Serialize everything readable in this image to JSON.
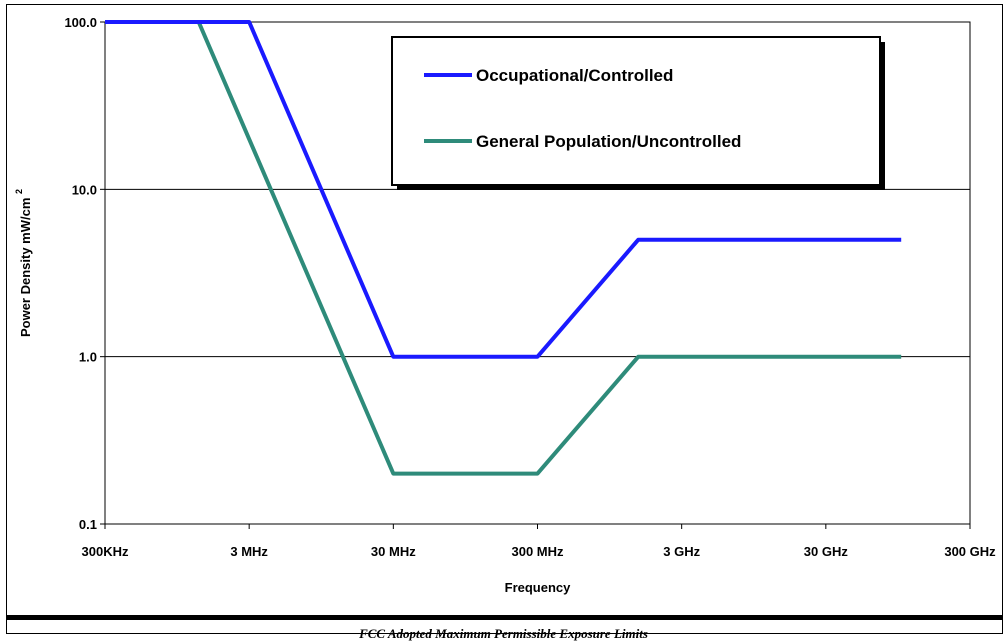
{
  "caption": "FCC Adopted Maximum Permissible Exposure Limits",
  "chart_data": {
    "type": "line",
    "title": "",
    "xlabel": "Frequency",
    "ylabel": "Power Density mW/cm",
    "ylabel_superscript": "2",
    "y_scale": "log",
    "x_scale": "log",
    "x_unit": "MHz",
    "ylim": [
      0.1,
      100
    ],
    "y_ticks": [
      {
        "value": 100,
        "label": "100.0"
      },
      {
        "value": 10,
        "label": "10.0"
      },
      {
        "value": 1,
        "label": "1.0"
      },
      {
        "value": 0.1,
        "label": "0.1"
      }
    ],
    "x_ticks": [
      {
        "value": 0.3,
        "label": "300KHz"
      },
      {
        "value": 3,
        "label": "3 MHz"
      },
      {
        "value": 30,
        "label": "30 MHz"
      },
      {
        "value": 300,
        "label": "300 MHz"
      },
      {
        "value": 3000,
        "label": "3 GHz"
      },
      {
        "value": 30000,
        "label": "30 GHz"
      },
      {
        "value": 300000,
        "label": "300 GHz"
      }
    ],
    "grid": "horizontal",
    "legend_position": "top-right",
    "series": [
      {
        "name": "Occupational/Controlled",
        "color": "#1a1aff",
        "points": [
          [
            0.3,
            100
          ],
          [
            3,
            100
          ],
          [
            30,
            1
          ],
          [
            300,
            1
          ],
          [
            1500,
            5
          ],
          [
            100000,
            5
          ]
        ]
      },
      {
        "name": "General Population/Uncontrolled",
        "color": "#2e8b7a",
        "points": [
          [
            0.3,
            100
          ],
          [
            1.34,
            100
          ],
          [
            30,
            0.2
          ],
          [
            300,
            0.2
          ],
          [
            1500,
            1
          ],
          [
            100000,
            1
          ]
        ]
      }
    ]
  }
}
